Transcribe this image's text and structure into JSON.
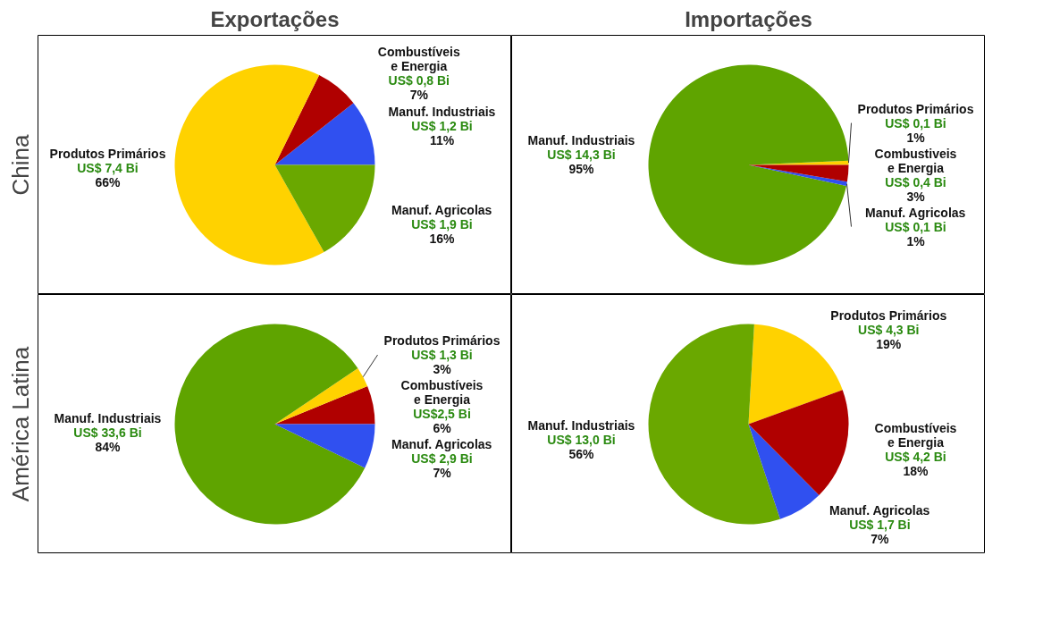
{
  "chart_data": [
    {
      "type": "pie",
      "title": "Exportações",
      "ylabel": "China",
      "categories": [
        "Manuf. Industriais",
        "Combustíveis e Energia",
        "Produtos Primários",
        "Manuf. Agricolas"
      ],
      "values": [
        1.2,
        0.8,
        7.4,
        1.9
      ],
      "colors": [
        "#3050f0",
        "#b00000",
        "#ffd200",
        "#6aa800"
      ],
      "value_labels": [
        "US$ 1,2 Bi\n11%",
        "US$ 0,8 Bi\n7%",
        "US$ 7,4 Bi\n66%",
        "US$ 1,9 Bi\n16%"
      ]
    },
    {
      "type": "pie",
      "title": "Importações",
      "categories": [
        "Produtos Primários",
        "Manuf. Industriais",
        "Manuf. Agricolas",
        "Combustiveis e Energia"
      ],
      "values": [
        0.1,
        14.3,
        0.1,
        0.4
      ],
      "colors": [
        "#ffd200",
        "#5fa400",
        "#3050f0",
        "#b00000"
      ],
      "value_labels": [
        "US$ 0,1 Bi\n1%",
        "US$ 14,3 Bi\n95%",
        "US$ 0,1 Bi\n1%",
        "US$ 0,4 Bi\n3%"
      ]
    },
    {
      "type": "pie",
      "ylabel": "América Latina",
      "categories": [
        "Combustíveis e Energia",
        "Produtos Primários",
        "Manuf. Industriais",
        "Manuf. Agricolas"
      ],
      "values": [
        2.5,
        1.3,
        33.6,
        2.9
      ],
      "colors": [
        "#b00000",
        "#ffd200",
        "#5fa400",
        "#3050f0"
      ],
      "value_labels": [
        "US$2,5 Bi\n6%",
        "US$ 1,3 Bi\n3%",
        "US$ 33,6 Bi\n84%",
        "US$ 2,9 Bi\n7%"
      ]
    },
    {
      "type": "pie",
      "categories": [
        "Produtos Primários",
        "Manuf. Industriais",
        "Manuf. Agricolas",
        "Combustíveis e Energia"
      ],
      "values": [
        4.3,
        13.0,
        1.7,
        4.2
      ],
      "colors": [
        "#ffd200",
        "#6aa800",
        "#3050f0",
        "#b00000"
      ],
      "value_labels": [
        "US$ 4,3 Bi\n19%",
        "US$ 13,0 Bi\n56%",
        "US$ 1,7 Bi\n7%",
        "US$ 4,2 Bi\n18%"
      ]
    }
  ]
}
